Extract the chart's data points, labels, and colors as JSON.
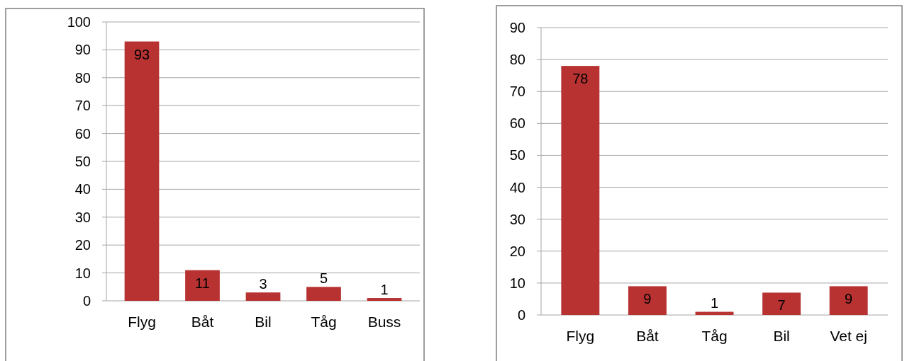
{
  "chart_data": [
    {
      "type": "bar",
      "categories": [
        "Flyg",
        "Båt",
        "Bil",
        "Tåg",
        "Buss"
      ],
      "values": [
        93,
        11,
        3,
        5,
        1
      ],
      "color": "#b83232",
      "ylim": [
        0,
        100
      ],
      "yticks": [
        0,
        10,
        20,
        30,
        40,
        50,
        60,
        70,
        80,
        90,
        100
      ],
      "grid": "y",
      "data_labels": true
    },
    {
      "type": "bar",
      "categories": [
        "Flyg",
        "Båt",
        "Tåg",
        "Bil",
        "Vet ej"
      ],
      "values": [
        78,
        9,
        1,
        7,
        9
      ],
      "color": "#b83232",
      "ylim": [
        0,
        90
      ],
      "yticks": [
        0,
        10,
        20,
        30,
        40,
        50,
        60,
        70,
        80,
        90
      ],
      "grid": "y",
      "data_labels": true
    }
  ]
}
